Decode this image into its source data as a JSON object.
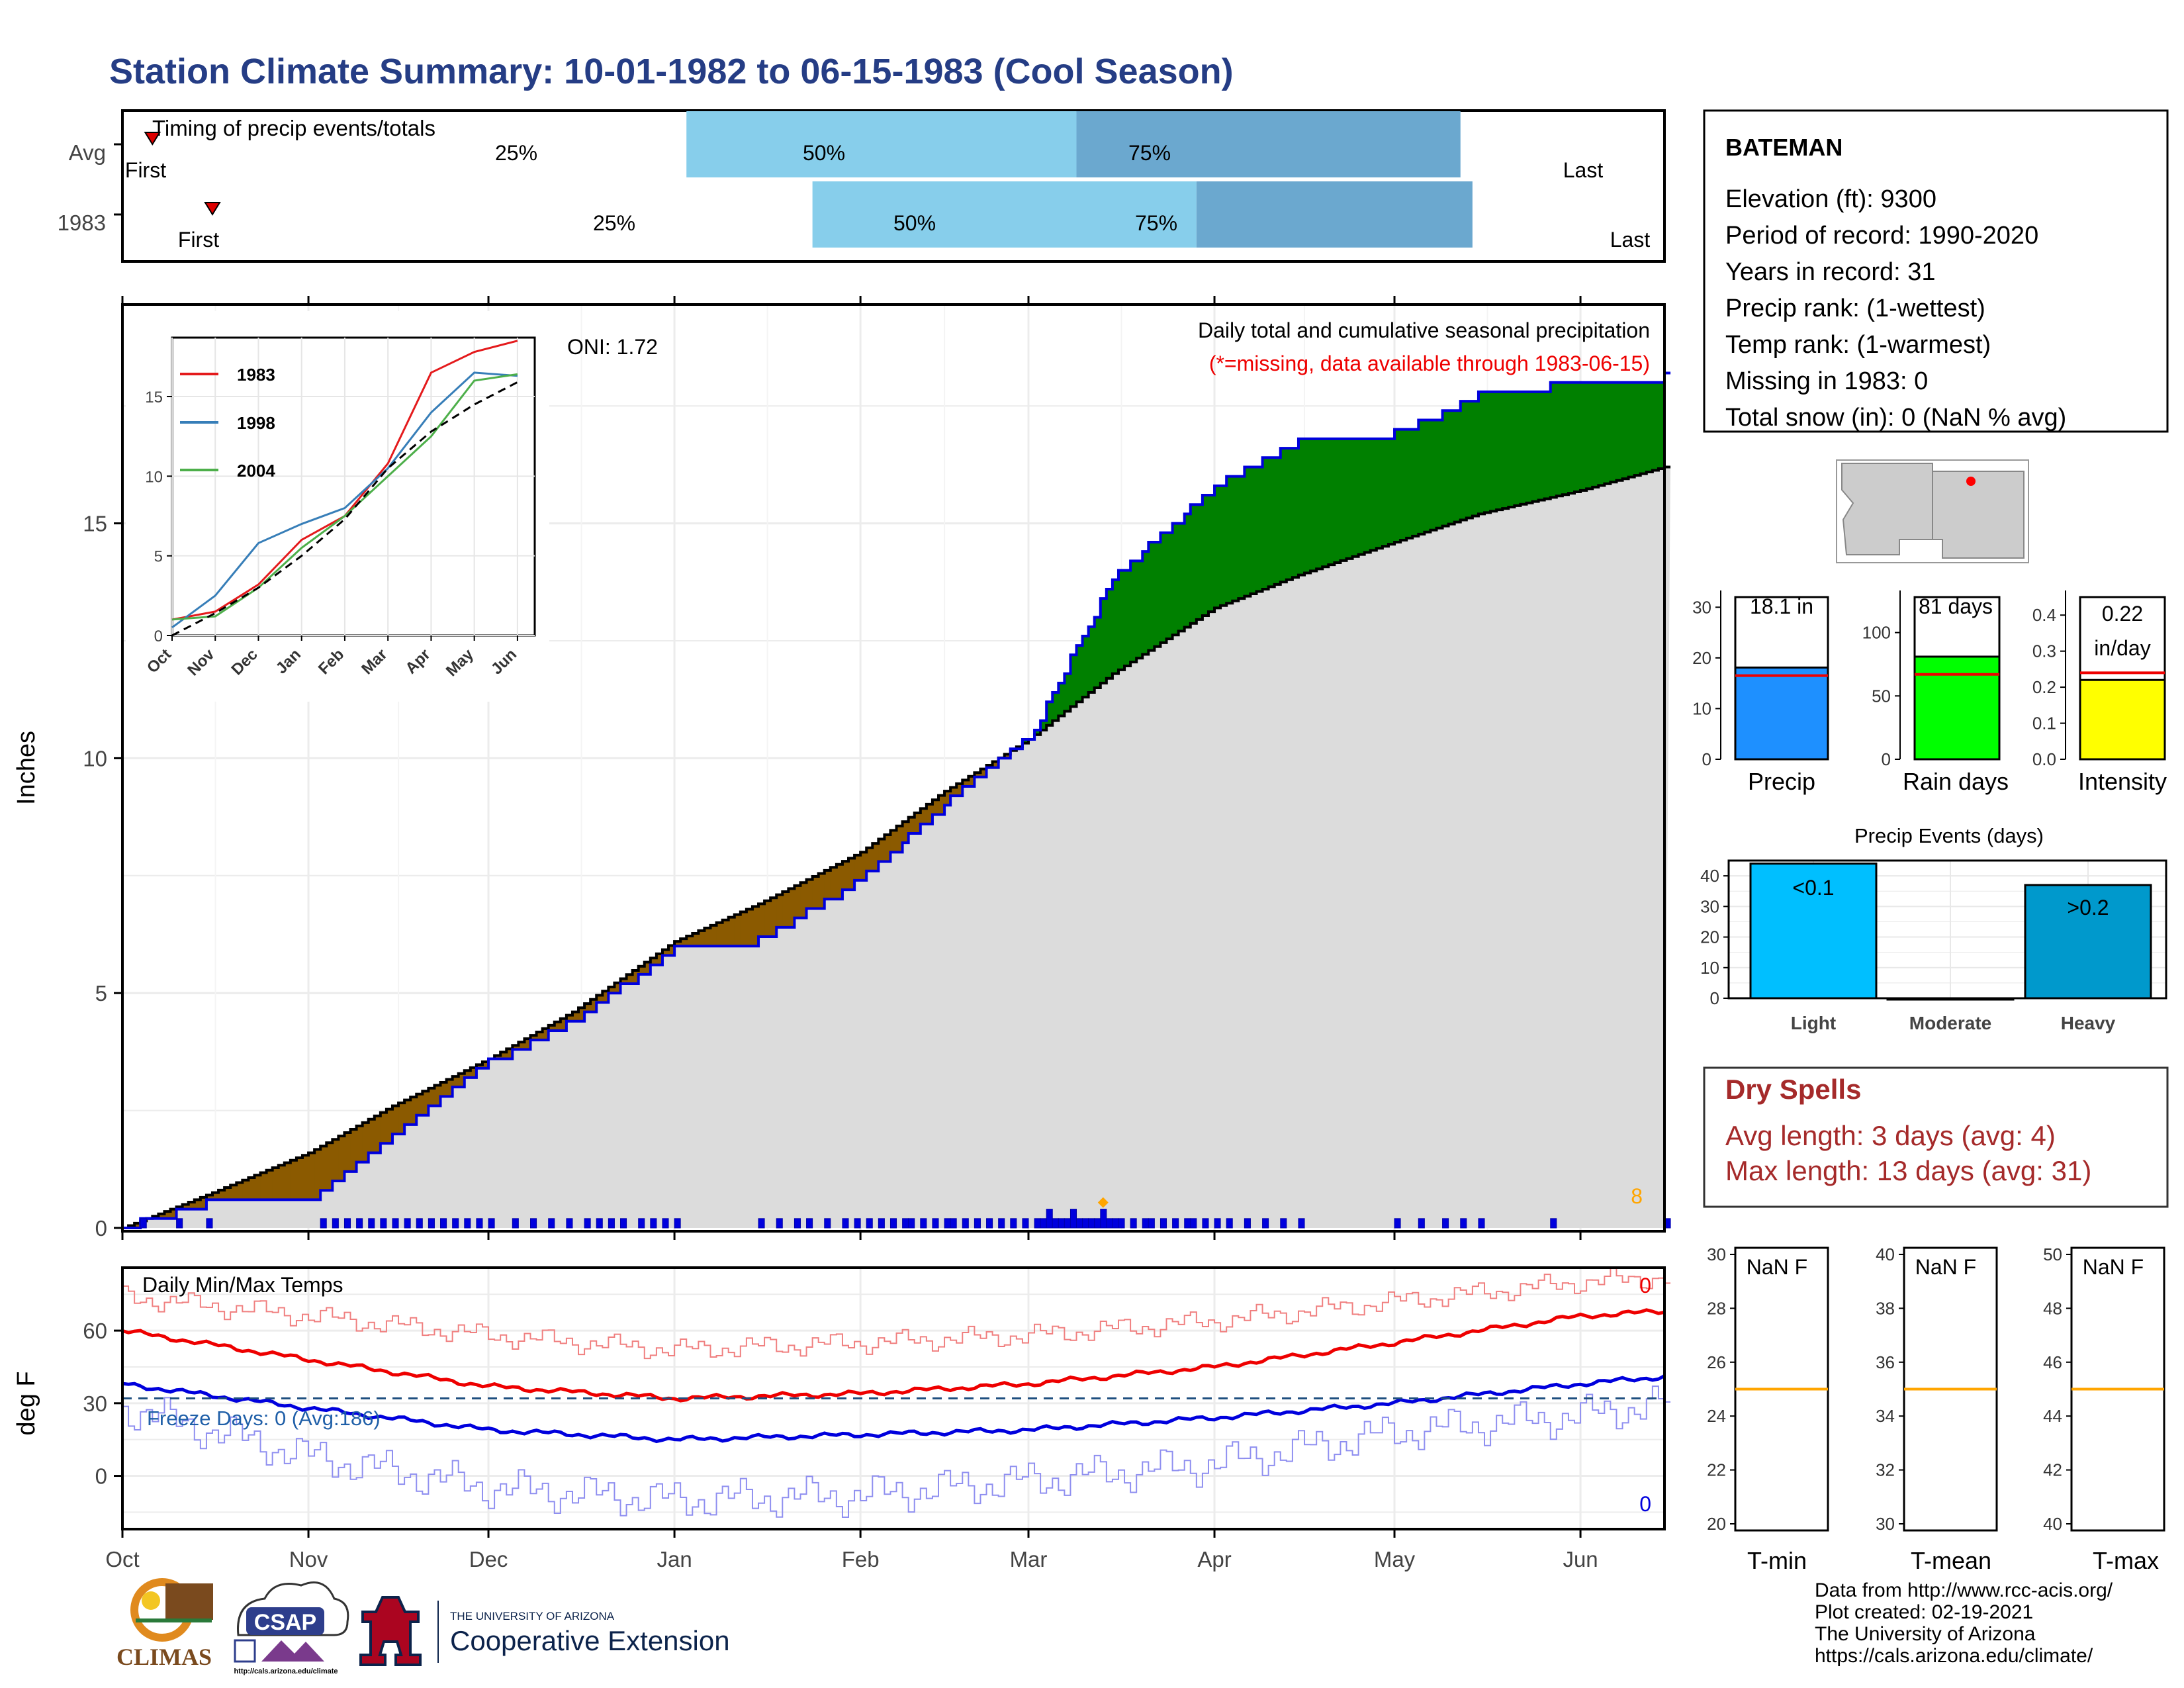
{
  "title": "Station Climate Summary: 10-01-1982 to 06-15-1983 (Cool Season)",
  "timing_panel": {
    "heading": "Timing of precip events/totals",
    "rows": [
      {
        "label": "Avg",
        "first_label": "First",
        "last_label": "Last",
        "p25": "25%",
        "p50": "50%",
        "p75": "75%",
        "first_day": 5,
        "p25_day": 94,
        "p50_day": 159,
        "p75_day": 223,
        "last_day": 304
      },
      {
        "label": "1983",
        "first_label": "First",
        "last_label": "Last",
        "p25": "25%",
        "p50": "50%",
        "p75": "75%",
        "first_day": 15,
        "p25_day": 115,
        "p50_day": 179,
        "p75_day": 225,
        "last_day": 315
      }
    ]
  },
  "station_box": {
    "name": "BATEMAN",
    "lines": [
      "Elevation (ft): 9300",
      "Period of record: 1990-2020",
      "Years in record: 31",
      "Precip rank:  (1-wettest)",
      "Temp rank:  (1-warmest)",
      "Missing in 1983: 0",
      "Total snow (in): 0 (NaN % avg)"
    ]
  },
  "precip_panel": {
    "ylabel": "Inches",
    "note": "Daily total and cumulative seasonal precipitation",
    "missing_note": "(*=missing, data available through 1983-06-15)",
    "oni": "ONI: 1.72",
    "count_label": "8",
    "y_ticks": [
      "0",
      "5",
      "10",
      "15"
    ],
    "x_months": [
      "Oct",
      "Nov",
      "Dec",
      "Jan",
      "Feb",
      "Mar",
      "Apr",
      "May",
      "Jun"
    ]
  },
  "inset": {
    "legend": [
      "1983",
      "1998",
      "2004"
    ],
    "y_ticks": [
      "0",
      "5",
      "10",
      "15"
    ],
    "x_months": [
      "Oct",
      "Nov",
      "Dec",
      "Jan",
      "Feb",
      "Mar",
      "Apr",
      "May",
      "Jun"
    ]
  },
  "temp_panel": {
    "ylabel": "deg F",
    "heading": "Daily Min/Max Temps",
    "freeze_note": "Freeze Days: 0 (Avg:186)",
    "max_count": "0",
    "min_count": "0",
    "y_ticks": [
      "0",
      "30",
      "60"
    ]
  },
  "mini_bars": [
    {
      "name": "Precip",
      "value_label": "18.1 in",
      "ticks": [
        "0",
        "10",
        "20",
        "30"
      ]
    },
    {
      "name": "Rain days",
      "value_label": "81 days",
      "ticks": [
        "0",
        "50",
        "100"
      ]
    },
    {
      "name": "Intensity",
      "value_label": "0.22",
      "value_label2": "in/day",
      "ticks": [
        "0.0",
        "0.1",
        "0.2",
        "0.3",
        "0.4"
      ]
    }
  ],
  "events": {
    "title": "Precip Events (days)",
    "bars": [
      {
        "name": "Light",
        "label": "<0.1"
      },
      {
        "name": "Moderate",
        "label": ""
      },
      {
        "name": "Heavy",
        "label": ">0.2"
      }
    ],
    "ticks": [
      "0",
      "10",
      "20",
      "30",
      "40"
    ]
  },
  "dry_spells": {
    "title": "Dry Spells",
    "avg_line": "Avg length: 3 days (avg: 4)",
    "max_line": "Max length: 13 days (avg: 31)"
  },
  "temp_boxes": [
    {
      "name": "T-min",
      "value": "NaN F",
      "ticks": [
        "20",
        "22",
        "24",
        "26",
        "28",
        "30"
      ]
    },
    {
      "name": "T-mean",
      "value": "NaN F",
      "ticks": [
        "30",
        "32",
        "34",
        "36",
        "38",
        "40"
      ]
    },
    {
      "name": "T-max",
      "value": "NaN F",
      "ticks": [
        "40",
        "42",
        "44",
        "46",
        "48",
        "50"
      ]
    }
  ],
  "footer": {
    "lines": [
      "Data from http://www.rcc-acis.org/",
      "Plot created: 02-19-2021",
      "The University of Arizona",
      "https://cals.arizona.edu/climate/"
    ],
    "climas": "CLIMAS",
    "csap": "CSAP",
    "csap_url": "http://cals.arizona.edu/climate",
    "ua_small": "THE UNIVERSITY OF ARIZONA",
    "ua_big": "Cooperative Extension"
  },
  "colors": {
    "title": "#253d85",
    "p25bar": "#87ceeb",
    "p50bar": "#6ba8cf",
    "surplus": "#008000",
    "deficit": "#8b5a00",
    "avgfill": "#dcdcdc",
    "cum": "#0000dd",
    "max": "#ee0000",
    "min": "#0000dd",
    "orange": "#ffa500",
    "precipbar": "#1e90ff",
    "raindays": "#00ff00",
    "intensity": "#ffff00",
    "light": "#00bfff",
    "heavy": "#0099cc",
    "dry": "#a52a2a"
  },
  "chart_data": [
    {
      "type": "area",
      "title": "Daily total and cumulative seasonal precipitation",
      "xlabel": "",
      "ylabel": "Inches",
      "x": [
        "1982-10-01",
        "1982-10-15",
        "1982-11-01",
        "1982-11-15",
        "1982-12-01",
        "1982-12-15",
        "1983-01-01",
        "1983-01-15",
        "1983-02-01",
        "1983-02-15",
        "1983-03-01",
        "1983-03-15",
        "1983-04-01",
        "1983-04-15",
        "1983-05-01",
        "1983-05-15",
        "1983-06-01",
        "1983-06-15"
      ],
      "series": [
        {
          "name": "1983",
          "values": [
            0.0,
            0.5,
            0.55,
            1.9,
            3.5,
            4.4,
            5.9,
            6.1,
            7.4,
            9.0,
            10.4,
            13.8,
            15.8,
            16.7,
            16.9,
            17.7,
            18.0,
            18.1
          ]
        },
        {
          "name": "Avg",
          "values": [
            0.0,
            0.7,
            1.6,
            2.6,
            3.6,
            4.6,
            6.1,
            6.9,
            8.0,
            9.3,
            10.4,
            11.8,
            13.2,
            13.9,
            14.6,
            15.2,
            15.7,
            16.2
          ]
        }
      ],
      "ylim": [
        0,
        19.8
      ]
    },
    {
      "type": "line",
      "title": "Daily Min/Max Temps",
      "ylabel": "deg F",
      "x": [
        "1982-10-01",
        "1982-11-01",
        "1982-12-01",
        "1983-01-01",
        "1983-02-01",
        "1983-03-01",
        "1983-04-01",
        "1983-05-01",
        "1983-06-01",
        "1983-06-15"
      ],
      "series": [
        {
          "name": "Avg max",
          "values": [
            60,
            48,
            37,
            32,
            34,
            38,
            45,
            55,
            66,
            68
          ]
        },
        {
          "name": "Avg min",
          "values": [
            38,
            28,
            19,
            15,
            17,
            19,
            24,
            30,
            38,
            41
          ]
        },
        {
          "name": "Record max",
          "values": [
            74,
            66,
            58,
            52,
            55,
            58,
            64,
            72,
            80,
            82
          ]
        },
        {
          "name": "Record min",
          "values": [
            28,
            8,
            -5,
            -10,
            -8,
            -2,
            5,
            18,
            25,
            30
          ]
        }
      ],
      "ylim": [
        -22,
        86
      ]
    },
    {
      "type": "line",
      "title": "",
      "x": [
        "Oct",
        "Nov",
        "Dec",
        "Jan",
        "Feb",
        "Mar",
        "Apr",
        "May",
        "Jun"
      ],
      "series": [
        {
          "name": "1983",
          "values": [
            1.0,
            1.5,
            3.2,
            6.0,
            7.5,
            10.8,
            16.5,
            17.8,
            18.5
          ]
        },
        {
          "name": "1998",
          "values": [
            0.5,
            2.5,
            5.8,
            7.0,
            8.0,
            10.5,
            14.0,
            16.5,
            16.3
          ]
        },
        {
          "name": "2004",
          "values": [
            1.0,
            1.2,
            3.0,
            5.5,
            7.5,
            10.0,
            12.5,
            16.0,
            16.4
          ]
        },
        {
          "name": "",
          "values": [
            0.0,
            1.4,
            3.0,
            5.0,
            7.3,
            10.5,
            12.8,
            14.5,
            15.9
          ]
        }
      ],
      "ylim": [
        0,
        18
      ]
    },
    {
      "type": "bar",
      "categories": [
        "Precip",
        "Rain days",
        "Intensity"
      ],
      "values": [
        18.1,
        81,
        0.22
      ],
      "averages": [
        16.5,
        67,
        0.24
      ]
    },
    {
      "type": "bar",
      "title": "Precip Events (days)",
      "categories": [
        "Light",
        "Moderate",
        "Heavy"
      ],
      "values": [
        44,
        0,
        37
      ],
      "ylim": [
        0,
        45
      ]
    }
  ]
}
